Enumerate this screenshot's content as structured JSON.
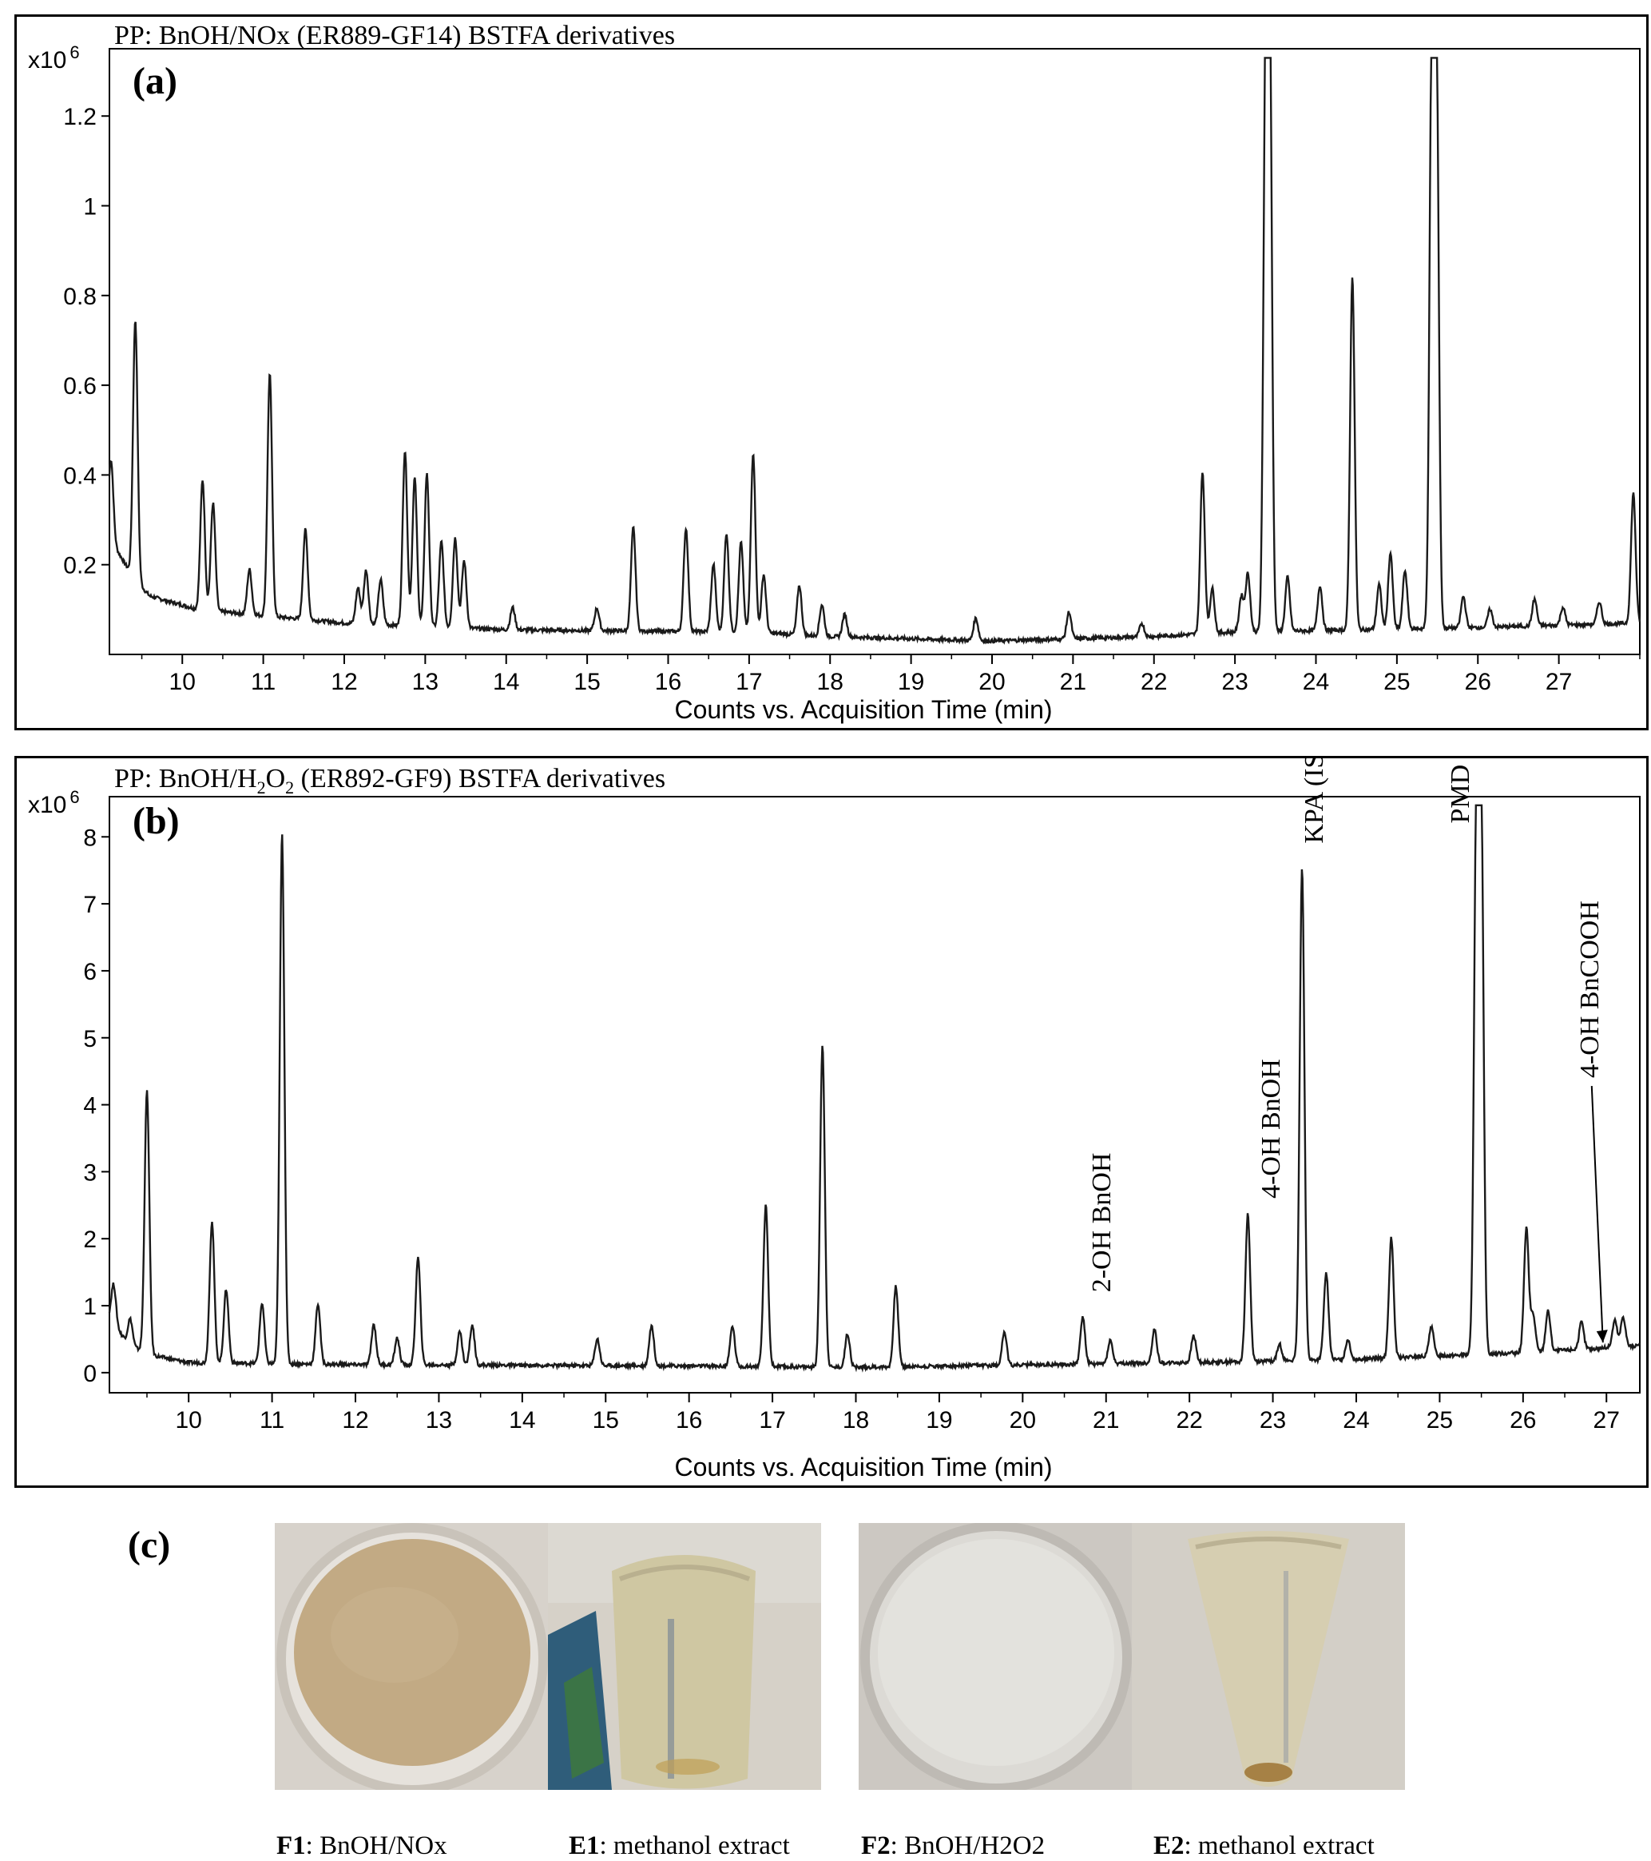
{
  "chart_data": [
    {
      "type": "line",
      "panel_label": "(a)",
      "title": "PP: BnOH/NOx (ER889-GF14) BSTFA derivatives",
      "y_multiplier_label": "x10",
      "y_multiplier_exp": "6",
      "xlabel": "Counts vs. Acquisition Time (min)",
      "xlim": [
        9.1,
        28.0
      ],
      "ylim": [
        0.0,
        1.35
      ],
      "x_ticks": [
        "10",
        "11",
        "12",
        "13",
        "14",
        "15",
        "16",
        "17",
        "18",
        "19",
        "20",
        "21",
        "22",
        "23",
        "24",
        "25",
        "26",
        "27"
      ],
      "y_ticks": [
        "0.2",
        "0.4",
        "0.6",
        "0.8",
        "1",
        "1.2"
      ],
      "y_tick_values": [
        0.2,
        0.4,
        0.6,
        0.8,
        1.0,
        1.2
      ],
      "baseline": [
        [
          9.1,
          0.26
        ],
        [
          9.4,
          0.17
        ],
        [
          9.6,
          0.13
        ],
        [
          10.2,
          0.1
        ],
        [
          12.0,
          0.07
        ],
        [
          14.0,
          0.055
        ],
        [
          17.0,
          0.05
        ],
        [
          18.0,
          0.04
        ],
        [
          20.0,
          0.03
        ],
        [
          22.0,
          0.04
        ],
        [
          23.0,
          0.05
        ],
        [
          26.0,
          0.06
        ],
        [
          28.0,
          0.07
        ]
      ],
      "peaks": [
        [
          9.12,
          0.18
        ],
        [
          9.42,
          0.58
        ],
        [
          10.25,
          0.29
        ],
        [
          10.38,
          0.24
        ],
        [
          10.83,
          0.1
        ],
        [
          11.08,
          0.54
        ],
        [
          11.52,
          0.2
        ],
        [
          12.17,
          0.08
        ],
        [
          12.27,
          0.12
        ],
        [
          12.45,
          0.1
        ],
        [
          12.75,
          0.39
        ],
        [
          12.87,
          0.33
        ],
        [
          13.02,
          0.34
        ],
        [
          13.2,
          0.19
        ],
        [
          13.37,
          0.2
        ],
        [
          13.48,
          0.15
        ],
        [
          14.08,
          0.05
        ],
        [
          15.12,
          0.05
        ],
        [
          15.57,
          0.23
        ],
        [
          16.22,
          0.23
        ],
        [
          16.56,
          0.15
        ],
        [
          16.72,
          0.22
        ],
        [
          16.9,
          0.2
        ],
        [
          17.05,
          0.4
        ],
        [
          17.18,
          0.13
        ],
        [
          17.62,
          0.11
        ],
        [
          17.9,
          0.07
        ],
        [
          18.18,
          0.05
        ],
        [
          19.8,
          0.05
        ],
        [
          20.95,
          0.06
        ],
        [
          21.85,
          0.03
        ],
        [
          22.6,
          0.36
        ],
        [
          22.72,
          0.1
        ],
        [
          23.08,
          0.08
        ],
        [
          23.16,
          0.13
        ],
        [
          23.38,
          1.25
        ],
        [
          23.43,
          1.25
        ],
        [
          23.65,
          0.12
        ],
        [
          24.05,
          0.1
        ],
        [
          24.45,
          0.79
        ],
        [
          24.78,
          0.1
        ],
        [
          24.92,
          0.17
        ],
        [
          25.1,
          0.13
        ],
        [
          25.43,
          1.25
        ],
        [
          25.49,
          1.25
        ],
        [
          25.82,
          0.07
        ],
        [
          26.15,
          0.04
        ],
        [
          26.7,
          0.06
        ],
        [
          27.05,
          0.04
        ],
        [
          27.5,
          0.05
        ],
        [
          27.92,
          0.29
        ]
      ],
      "series_color": "#1a1a1a"
    },
    {
      "type": "line",
      "panel_label": "(b)",
      "title_prefix": "PP: BnOH/H",
      "title_sub1": "2",
      "title_mid": "O",
      "title_sub2": "2",
      "title_suffix": " (ER892-GF9) BSTFA derivatives",
      "y_multiplier_label": "x10",
      "y_multiplier_exp": "6",
      "xlabel": "Counts vs. Acquisition Time (min)",
      "xlim": [
        9.05,
        27.4
      ],
      "ylim": [
        -0.3,
        8.6
      ],
      "x_ticks": [
        "10",
        "11",
        "12",
        "13",
        "14",
        "15",
        "16",
        "17",
        "18",
        "19",
        "20",
        "21",
        "22",
        "23",
        "24",
        "25",
        "26",
        "27"
      ],
      "y_ticks": [
        "0",
        "1",
        "2",
        "3",
        "4",
        "5",
        "6",
        "7",
        "8"
      ],
      "y_tick_values": [
        0,
        1,
        2,
        3,
        4,
        5,
        6,
        7,
        8
      ],
      "baseline": [
        [
          9.05,
          0.8
        ],
        [
          9.3,
          0.4
        ],
        [
          9.6,
          0.25
        ],
        [
          10.0,
          0.15
        ],
        [
          12.0,
          0.12
        ],
        [
          16.0,
          0.1
        ],
        [
          18.0,
          0.08
        ],
        [
          22.0,
          0.15
        ],
        [
          24.0,
          0.2
        ],
        [
          26.0,
          0.3
        ],
        [
          27.4,
          0.4
        ]
      ],
      "peaks": [
        [
          9.1,
          0.6
        ],
        [
          9.3,
          0.4
        ],
        [
          9.5,
          3.9
        ],
        [
          10.28,
          2.1
        ],
        [
          10.45,
          1.1
        ],
        [
          10.88,
          0.9
        ],
        [
          11.12,
          7.9
        ],
        [
          11.55,
          0.9
        ],
        [
          12.22,
          0.6
        ],
        [
          12.5,
          0.4
        ],
        [
          12.75,
          1.6
        ],
        [
          13.25,
          0.5
        ],
        [
          13.4,
          0.6
        ],
        [
          14.9,
          0.4
        ],
        [
          15.55,
          0.6
        ],
        [
          16.52,
          0.6
        ],
        [
          16.92,
          2.4
        ],
        [
          17.6,
          4.8
        ],
        [
          17.9,
          0.5
        ],
        [
          18.48,
          1.2
        ],
        [
          19.78,
          0.5
        ],
        [
          20.72,
          0.7
        ],
        [
          21.05,
          0.35
        ],
        [
          21.58,
          0.5
        ],
        [
          22.05,
          0.4
        ],
        [
          22.7,
          2.2
        ],
        [
          23.08,
          0.25
        ],
        [
          23.35,
          7.35
        ],
        [
          23.64,
          1.3
        ],
        [
          23.9,
          0.3
        ],
        [
          24.42,
          1.8
        ],
        [
          24.9,
          0.45
        ],
        [
          25.44,
          7.9
        ],
        [
          25.5,
          7.9
        ],
        [
          26.04,
          1.85
        ],
        [
          26.12,
          0.55
        ],
        [
          26.3,
          0.6
        ],
        [
          26.7,
          0.4
        ],
        [
          27.1,
          0.4
        ],
        [
          27.2,
          0.45
        ]
      ],
      "annotations": [
        {
          "text": "2-OH BnOH",
          "x": 21.05
        },
        {
          "text": "4-OH BnOH",
          "x": 23.08
        },
        {
          "text": "KPA (IS)",
          "x": 23.6
        },
        {
          "text": "PMD (IS)",
          "x": 25.35
        },
        {
          "text": "4-OH BnCOOH",
          "x": 26.9
        }
      ],
      "series_color": "#1a1a1a"
    }
  ],
  "panel_c": {
    "label": "(c)",
    "captions": [
      {
        "bold": "F1",
        "rest": ": BnOH/NOx"
      },
      {
        "bold": "E1",
        "rest": ": methanol extract"
      },
      {
        "bold": "F2",
        "rest": ": BnOH/H2O2"
      },
      {
        "bold": "E2",
        "rest": ": methanol extract"
      }
    ]
  }
}
